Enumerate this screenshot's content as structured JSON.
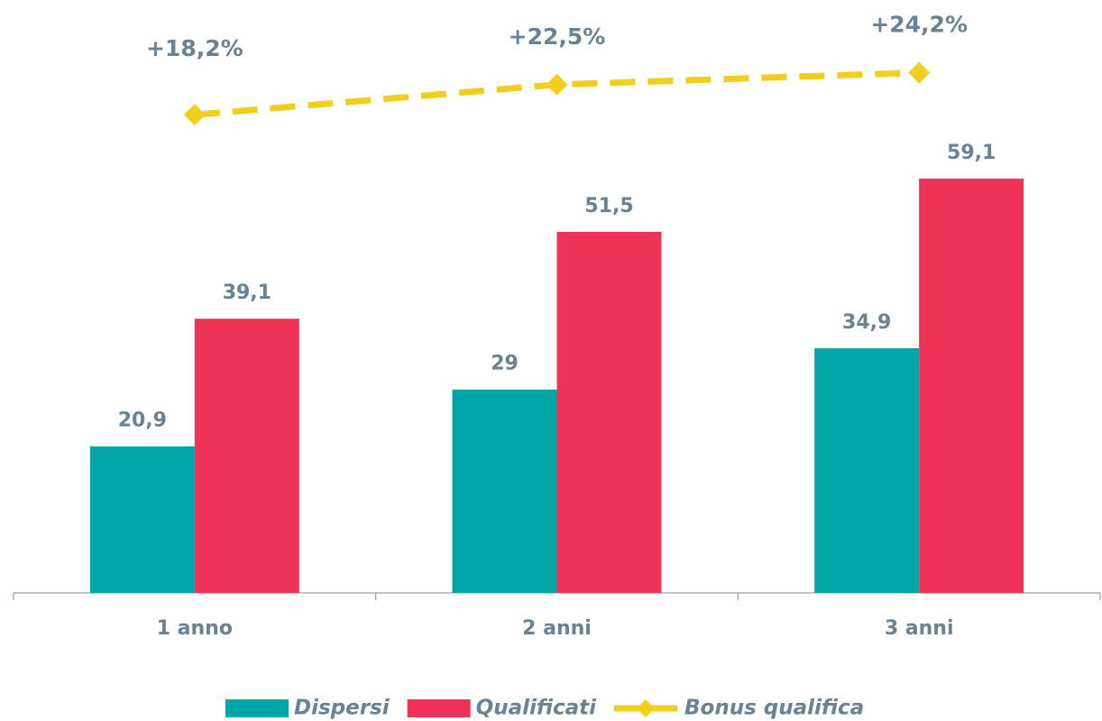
{
  "chart_data": {
    "type": "bar",
    "categories": [
      "1 anno",
      "2 anni",
      "3 anni"
    ],
    "series": [
      {
        "name": "Dispersi",
        "color": "#00a5a8",
        "values": [
          20.9,
          29,
          34.9
        ],
        "value_labels": [
          "20,9",
          "29",
          "34,9"
        ]
      },
      {
        "name": "Qualificati",
        "color": "#ee3356",
        "values": [
          39.1,
          51.5,
          59.1
        ],
        "value_labels": [
          "39,1",
          "51,5",
          "59,1"
        ]
      },
      {
        "name": "Bonus qualifica",
        "type": "line",
        "axis": "y2",
        "color": "#f2cf1e",
        "values": [
          18.2,
          22.5,
          24.2
        ],
        "value_labels": [
          "+18,2%",
          "+22,5%",
          "+24,2%"
        ]
      }
    ],
    "ylim": [
      0,
      80
    ],
    "y2lim": [
      -50,
      30
    ]
  }
}
